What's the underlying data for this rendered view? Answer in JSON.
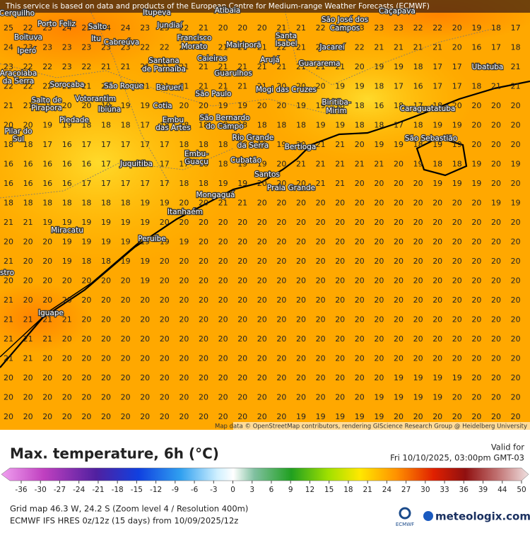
{
  "header": {
    "notice": "This service is based on data and products of the European Centre for Medium-range Weather Forecasts (ECMWF)",
    "attribution": "Map data © OpenStreetMap contributors, rendering GIScience Research Group @ Heidelberg University"
  },
  "places": [
    "Cerquilho",
    "Porto Feliz",
    "Salto",
    "Itupeva",
    "Jundiaí",
    "Atibaia",
    "Boituva",
    "Itu",
    "Cabreúva",
    "Francisco",
    "Morato",
    "Mairiporã",
    "Santa",
    "Isabel",
    "São José dos",
    "Campos",
    "Caçapava",
    "Iperó",
    "Jacareí",
    "Caieiras",
    "Santana",
    "de Parnaíba",
    "Arujá",
    "Guararema",
    "Guarulhos",
    "Ubatuba",
    "Araçoiaba",
    "da Serra",
    "Sorocaba",
    "São Roque",
    "Barueri",
    "Mogi das Cruzes",
    "São Paulo",
    "Votorantim",
    "Salto de",
    "Pirapora",
    "Ibiúna",
    "Cotia",
    "Biritiba-",
    "Mirim",
    "Caraguatatuba",
    "São Bernardo",
    "do Campo",
    "Embu",
    "das Artes",
    "Piedade",
    "Pilar do",
    "Sul",
    "São Sebastião",
    "Rio Grande",
    "da Serra",
    "Bertioga",
    "Embu-",
    "Guaçu",
    "Juquitiba",
    "Cubatão",
    "Santos",
    "Praia Grande",
    "Mongaguá",
    "Itanhaém",
    "Miracatu",
    "Peruíbe",
    "Iguape",
    "stro"
  ],
  "grid": [
    [
      25,
      22,
      23,
      24,
      23,
      24,
      24,
      23,
      23,
      22,
      21,
      20,
      20,
      20,
      21,
      21,
      22,
      22,
      23,
      23,
      23,
      22,
      22,
      20,
      19,
      18,
      17
    ],
    [
      24,
      23,
      23,
      23,
      23,
      23,
      23,
      22,
      22,
      22,
      21,
      21,
      21,
      21,
      22,
      21,
      21,
      22,
      22,
      21,
      21,
      21,
      21,
      20,
      16,
      17,
      18
    ],
    [
      23,
      22,
      22,
      23,
      22,
      21,
      21,
      21,
      21,
      21,
      21,
      21,
      21,
      21,
      21,
      21,
      21,
      21,
      20,
      19,
      19,
      18,
      17,
      17,
      16,
      16,
      21
    ],
    [
      22,
      22,
      22,
      22,
      21,
      20,
      20,
      21,
      21,
      21,
      21,
      21,
      21,
      21,
      20,
      20,
      20,
      19,
      19,
      18,
      17,
      16,
      17,
      17,
      18,
      21,
      21
    ],
    [
      21,
      21,
      21,
      20,
      20,
      19,
      19,
      19,
      19,
      20,
      20,
      19,
      19,
      20,
      20,
      19,
      19,
      18,
      18,
      16,
      18,
      17,
      18,
      20,
      20,
      20,
      20
    ],
    [
      20,
      20,
      19,
      19,
      18,
      18,
      18,
      17,
      18,
      18,
      18,
      18,
      18,
      18,
      18,
      18,
      19,
      19,
      18,
      18,
      17,
      18,
      19,
      19,
      20,
      20,
      20
    ],
    [
      18,
      18,
      17,
      16,
      17,
      17,
      17,
      17,
      17,
      18,
      18,
      18,
      18,
      19,
      19,
      20,
      21,
      21,
      20,
      19,
      19,
      18,
      19,
      19,
      20,
      20,
      20
    ],
    [
      16,
      16,
      16,
      16,
      16,
      17,
      17,
      17,
      17,
      17,
      18,
      18,
      19,
      19,
      20,
      21,
      21,
      21,
      21,
      21,
      20,
      19,
      18,
      18,
      19,
      20,
      19
    ],
    [
      16,
      16,
      16,
      16,
      17,
      17,
      17,
      17,
      17,
      18,
      18,
      19,
      19,
      20,
      20,
      20,
      21,
      21,
      20,
      20,
      20,
      20,
      19,
      19,
      19,
      20,
      20
    ],
    [
      18,
      18,
      18,
      18,
      18,
      18,
      18,
      19,
      19,
      20,
      20,
      21,
      21,
      20,
      20,
      20,
      20,
      20,
      20,
      20,
      20,
      20,
      20,
      20,
      20,
      19,
      19
    ],
    [
      21,
      21,
      19,
      19,
      19,
      19,
      19,
      19,
      20,
      20,
      20,
      20,
      20,
      20,
      20,
      20,
      20,
      20,
      20,
      20,
      20,
      20,
      20,
      20,
      20,
      20,
      20
    ],
    [
      20,
      20,
      20,
      19,
      19,
      19,
      19,
      19,
      19,
      19,
      20,
      20,
      20,
      20,
      20,
      20,
      20,
      20,
      20,
      20,
      20,
      20,
      20,
      20,
      20,
      20,
      20
    ],
    [
      21,
      20,
      20,
      19,
      18,
      18,
      19,
      19,
      20,
      20,
      20,
      20,
      20,
      20,
      20,
      20,
      20,
      20,
      20,
      20,
      20,
      20,
      20,
      20,
      20,
      20,
      20
    ],
    [
      20,
      20,
      20,
      20,
      20,
      20,
      20,
      19,
      20,
      20,
      20,
      20,
      20,
      20,
      20,
      20,
      20,
      20,
      20,
      20,
      20,
      20,
      20,
      20,
      20,
      20,
      20
    ],
    [
      21,
      20,
      20,
      20,
      20,
      20,
      20,
      20,
      20,
      20,
      20,
      20,
      20,
      20,
      20,
      20,
      20,
      20,
      20,
      20,
      20,
      20,
      20,
      20,
      20,
      20,
      20
    ],
    [
      21,
      21,
      21,
      21,
      20,
      20,
      20,
      20,
      20,
      20,
      20,
      20,
      20,
      20,
      20,
      20,
      20,
      20,
      20,
      20,
      20,
      20,
      20,
      20,
      20,
      20,
      20
    ],
    [
      21,
      21,
      21,
      20,
      20,
      20,
      20,
      20,
      20,
      20,
      20,
      20,
      20,
      20,
      20,
      20,
      20,
      20,
      20,
      20,
      20,
      20,
      20,
      20,
      20,
      20,
      20
    ],
    [
      21,
      21,
      20,
      20,
      20,
      20,
      20,
      20,
      20,
      20,
      20,
      20,
      20,
      20,
      20,
      20,
      20,
      20,
      20,
      20,
      20,
      20,
      20,
      20,
      20,
      20,
      20
    ],
    [
      20,
      20,
      20,
      20,
      20,
      20,
      20,
      20,
      20,
      20,
      20,
      20,
      20,
      20,
      20,
      20,
      20,
      20,
      20,
      20,
      19,
      19,
      19,
      19,
      20,
      20,
      20
    ],
    [
      20,
      20,
      20,
      20,
      20,
      20,
      20,
      20,
      20,
      20,
      20,
      20,
      20,
      20,
      20,
      20,
      20,
      20,
      20,
      19,
      19,
      19,
      19,
      20,
      20,
      20,
      20
    ],
    [
      20,
      20,
      20,
      20,
      20,
      20,
      20,
      20,
      20,
      20,
      20,
      20,
      20,
      20,
      20,
      19,
      19,
      19,
      19,
      19,
      20,
      20,
      20,
      20,
      20,
      20,
      20
    ]
  ],
  "footer": {
    "title": "Max. temperature, 6h (°C)",
    "valid_label": "Valid for",
    "valid_time": "Fri 10/10/2025, 03:00pm GMT-03",
    "scale": [
      -36,
      -30,
      -27,
      -24,
      -21,
      -18,
      -15,
      -12,
      -9,
      -6,
      -3,
      0,
      3,
      6,
      9,
      12,
      15,
      18,
      21,
      24,
      27,
      30,
      33,
      36,
      39,
      44,
      50
    ],
    "grid_info": "Grid map 46.3 W, 24.2 S (Zoom level 4 / Resolution 400m)",
    "model_info": "ECMWF IFS HRES 0z/12z (15 days) from 10/09/2025/12z",
    "ecmwf": "ECMWF",
    "brand": "meteologix.com"
  }
}
